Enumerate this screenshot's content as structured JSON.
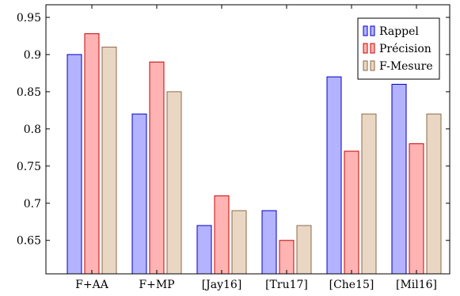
{
  "chart_data": {
    "type": "bar",
    "categories": [
      "F+AA",
      "F+MP",
      "[Jay16]",
      "[Tru17]",
      "[Che15]",
      "[Mil16]"
    ],
    "series": [
      {
        "name": "Rappel",
        "values": [
          0.9,
          0.82,
          0.67,
          0.69,
          0.87,
          0.86
        ],
        "fill": "#b3b3ff",
        "stroke": "#0000cc"
      },
      {
        "name": "Précision",
        "values": [
          0.928,
          0.89,
          0.71,
          0.65,
          0.77,
          0.78
        ],
        "fill": "#ffb3b3",
        "stroke": "#cc0000"
      },
      {
        "name": "F-Mesure",
        "values": [
          0.91,
          0.85,
          0.69,
          0.67,
          0.82,
          0.82
        ],
        "fill": "#ead7c3",
        "stroke": "#8c6a4a"
      }
    ],
    "yticks": [
      "0.65",
      "0.7",
      "0.75",
      "0.8",
      "0.85",
      "0.9",
      "0.95"
    ],
    "ylim": [
      0.605,
      0.967
    ],
    "legend_position": "top-right",
    "grid": false
  }
}
